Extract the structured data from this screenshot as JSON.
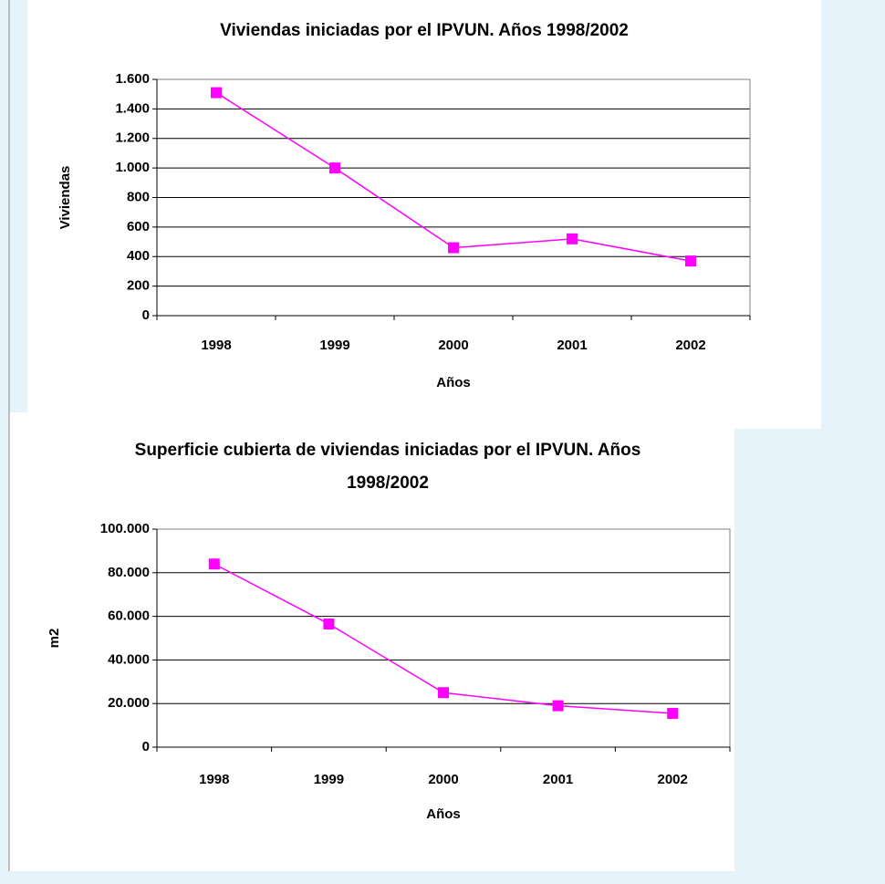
{
  "chart_data": [
    {
      "type": "line",
      "title": "Viviendas iniciadas por el IPVUN. Años 1998/2002",
      "x_label": "Años",
      "y_label": "Viviendas",
      "categories": [
        "1998",
        "1999",
        "2000",
        "2001",
        "2002"
      ],
      "series": [
        {
          "name": "Viviendas",
          "color": "#ff00ff",
          "values": [
            1510,
            1000,
            460,
            520,
            370
          ]
        }
      ],
      "ylim": [
        0,
        1600
      ],
      "yticks": [
        0,
        200,
        400,
        600,
        800,
        {
          "value": 1000,
          "label": "1.000"
        },
        {
          "value": 1200,
          "label": "1.200"
        },
        {
          "value": 1400,
          "label": "1.400"
        },
        {
          "value": 1600,
          "label": "1.600"
        }
      ],
      "grid": true
    },
    {
      "type": "line",
      "title": "Superficie cubierta de viviendas iniciadas por el IPVUN. Años 1998/2002",
      "x_label": "Años",
      "y_label": "m2",
      "categories": [
        "1998",
        "1999",
        "2000",
        "2001",
        "2002"
      ],
      "series": [
        {
          "name": "m2",
          "color": "#ff00ff",
          "values": [
            84000,
            56500,
            25000,
            19000,
            15500
          ]
        }
      ],
      "ylim": [
        0,
        100000
      ],
      "yticks": [
        0,
        {
          "value": 20000,
          "label": "20.000"
        },
        {
          "value": 40000,
          "label": "40.000"
        },
        {
          "value": 60000,
          "label": "60.000"
        },
        {
          "value": 80000,
          "label": "80.000"
        },
        {
          "value": 100000,
          "label": "100.000"
        }
      ],
      "grid": true
    }
  ]
}
